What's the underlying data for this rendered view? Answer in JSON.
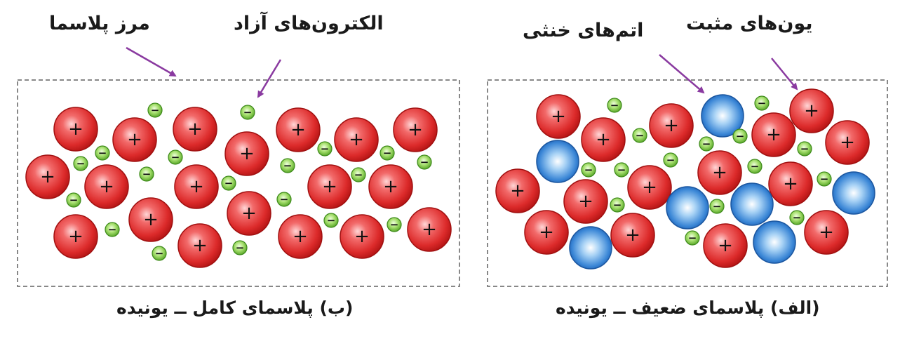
{
  "labels": {
    "boundary": "مرز پلاسما",
    "free_electrons": "الکترون‌های آزاد",
    "neutral_atoms": "اتم‌های خنثی",
    "positive_ions": "یون‌های مثبت"
  },
  "captions": {
    "right": "(الف) پلاسمای ضعیف ــ یونیده",
    "left": "(ب) پلاسمای کامل ــ یونیده"
  },
  "symbols": {
    "plus": "+",
    "minus": "−"
  },
  "colors": {
    "positive_ion": "#e03030",
    "neutral_atom": "#2f7fd0",
    "electron": "#7ec83a",
    "arrow": "#8a3aa0",
    "boundary": "#888888"
  }
}
